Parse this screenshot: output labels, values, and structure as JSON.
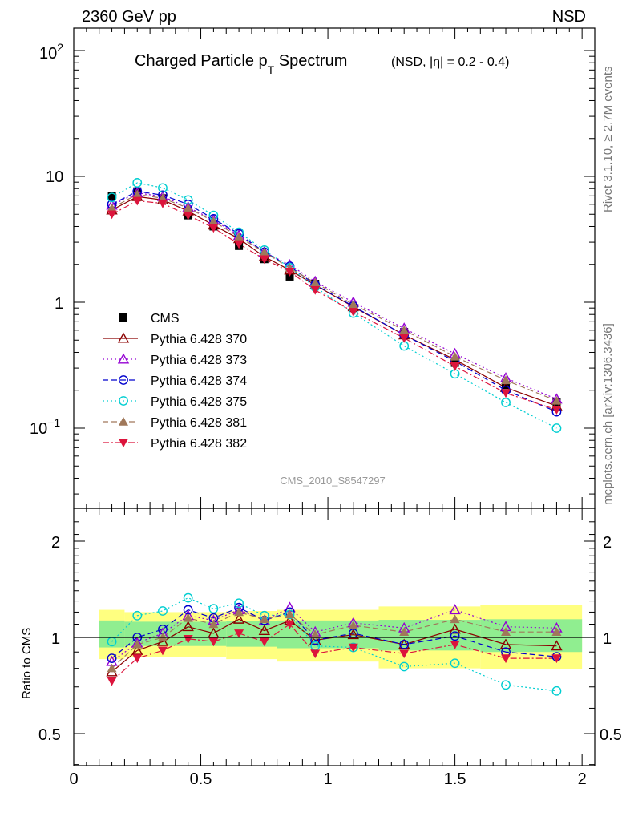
{
  "header": {
    "left": "2360 GeV pp",
    "right": "NSD",
    "title_main": "Charged Particle p",
    "title_sub": "T",
    "title_tail": " Spectrum",
    "title_extra": "(NSD, |η| = 0.2 - 0.4)",
    "analysis_id": "CMS_2010_S8547297",
    "side_top": "Rivet 3.1.10, ≥ 2.7M events",
    "side_bottom": "mcplots.cern.ch [arXiv:1306.3436]"
  },
  "colors": {
    "cms": "#000000",
    "p370": "#8b0000",
    "p373": "#9400d3",
    "p374": "#0000cd",
    "p375": "#00ced1",
    "p381": "#a0785a",
    "p382": "#dc143c",
    "band_inner": "#90ee90",
    "band_outer": "#ffff80"
  },
  "chart_data": {
    "type": "scatter",
    "x": [
      0.15,
      0.25,
      0.35,
      0.45,
      0.55,
      0.65,
      0.75,
      0.85,
      0.95,
      1.1,
      1.3,
      1.5,
      1.7,
      1.9
    ],
    "main": {
      "yscale": "log",
      "ylim": [
        0.025,
        150
      ],
      "xlim": [
        0,
        2.05
      ],
      "ytick_labels": {
        "major100": "10",
        "exp100": "2",
        "major10": "10",
        "major1": "1",
        "major01": "10",
        "exp01": "−1"
      },
      "series": [
        {
          "name": "CMS",
          "key": "cms",
          "marker": "square-filled",
          "line": "none",
          "values": [
            7.0,
            7.6,
            6.7,
            4.9,
            4.0,
            2.8,
            2.2,
            1.6,
            1.4,
            0.9,
            0.58,
            0.33,
            0.22,
            0.16
          ]
        },
        {
          "name": "Pythia 6.428 370",
          "key": "p370",
          "marker": "triangle-up-open",
          "line": "solid",
          "values": [
            5.4,
            6.9,
            6.5,
            5.3,
            4.1,
            3.2,
            2.3,
            1.8,
            1.37,
            0.92,
            0.55,
            0.35,
            0.21,
            0.15
          ]
        },
        {
          "name": "Pythia 6.428 373",
          "key": "p373",
          "marker": "triangle-up-open",
          "line": "dotted",
          "values": [
            5.9,
            7.4,
            6.9,
            5.7,
            4.5,
            3.4,
            2.5,
            1.98,
            1.46,
            1.0,
            0.62,
            0.39,
            0.25,
            0.17
          ]
        },
        {
          "name": "Pythia 6.428 374",
          "key": "p374",
          "marker": "circle-open",
          "line": "dashed",
          "values": [
            6.0,
            7.6,
            7.1,
            6.0,
            4.6,
            3.5,
            2.5,
            1.93,
            1.38,
            0.93,
            0.55,
            0.34,
            0.2,
            0.135
          ]
        },
        {
          "name": "Pythia 6.428 375",
          "key": "p375",
          "marker": "circle-open",
          "line": "dotted",
          "values": [
            6.8,
            8.9,
            8.1,
            6.5,
            4.9,
            3.6,
            2.6,
            1.88,
            1.32,
            0.82,
            0.45,
            0.27,
            0.16,
            0.1
          ]
        },
        {
          "name": "Pythia 6.428 381",
          "key": "p381",
          "marker": "triangle-up-filled",
          "line": "dashed",
          "values": [
            5.6,
            7.2,
            6.7,
            5.6,
            4.4,
            3.3,
            2.5,
            1.87,
            1.43,
            0.96,
            0.6,
            0.37,
            0.24,
            0.165
          ]
        },
        {
          "name": "Pythia 6.428 382",
          "key": "p382",
          "marker": "triangle-down-filled",
          "line": "dashdot",
          "values": [
            5.0,
            6.4,
            6.1,
            4.9,
            3.9,
            2.9,
            2.2,
            1.75,
            1.25,
            0.84,
            0.52,
            0.31,
            0.19,
            0.14
          ]
        }
      ]
    },
    "ratio": {
      "yscale": "log",
      "ylim": [
        0.4,
        2.4
      ],
      "ylabel": "Ratio to CMS",
      "ytick_labels": [
        "2",
        "1",
        "0.5"
      ],
      "xtick_labels": [
        "0",
        "0.5",
        "1",
        "1.5",
        "2"
      ],
      "band_inner": [
        [
          0.1,
          0.2,
          0.93,
          1.13
        ],
        [
          0.2,
          0.6,
          0.94,
          1.12
        ],
        [
          0.6,
          0.8,
          0.935,
          1.125
        ],
        [
          0.8,
          1.2,
          0.925,
          1.13
        ],
        [
          1.2,
          1.6,
          0.91,
          1.135
        ],
        [
          1.6,
          2.0,
          0.9,
          1.14
        ]
      ],
      "band_outer": [
        [
          0.1,
          0.2,
          0.855,
          1.22
        ],
        [
          0.2,
          0.6,
          0.87,
          1.2
        ],
        [
          0.6,
          0.8,
          0.855,
          1.21
        ],
        [
          0.8,
          1.2,
          0.84,
          1.22
        ],
        [
          1.2,
          1.6,
          0.8,
          1.25
        ],
        [
          1.6,
          2.0,
          0.795,
          1.26
        ]
      ],
      "series": [
        {
          "key": "p370",
          "values": [
            0.78,
            0.91,
            0.97,
            1.08,
            1.03,
            1.14,
            1.05,
            1.13,
            0.98,
            1.02,
            0.95,
            1.06,
            0.95,
            0.94
          ]
        },
        {
          "key": "p373",
          "values": [
            0.84,
            0.96,
            1.03,
            1.17,
            1.13,
            1.22,
            1.13,
            1.24,
            1.04,
            1.11,
            1.07,
            1.22,
            1.08,
            1.07
          ]
        },
        {
          "key": "p374",
          "values": [
            0.86,
            1.0,
            1.06,
            1.22,
            1.15,
            1.24,
            1.13,
            1.2,
            0.98,
            1.03,
            0.95,
            1.01,
            0.9,
            0.87
          ]
        },
        {
          "key": "p375",
          "values": [
            0.97,
            1.17,
            1.21,
            1.33,
            1.23,
            1.28,
            1.17,
            1.18,
            0.94,
            0.93,
            0.81,
            0.83,
            0.71,
            0.68
          ]
        },
        {
          "key": "p381",
          "values": [
            0.8,
            0.95,
            1.0,
            1.15,
            1.1,
            1.2,
            1.14,
            1.18,
            1.02,
            1.09,
            1.04,
            1.14,
            1.04,
            1.04
          ]
        },
        {
          "key": "p382",
          "values": [
            0.73,
            0.86,
            0.91,
            0.99,
            0.97,
            1.03,
            0.97,
            1.1,
            0.89,
            0.93,
            0.89,
            0.95,
            0.86,
            0.86
          ]
        }
      ]
    }
  }
}
